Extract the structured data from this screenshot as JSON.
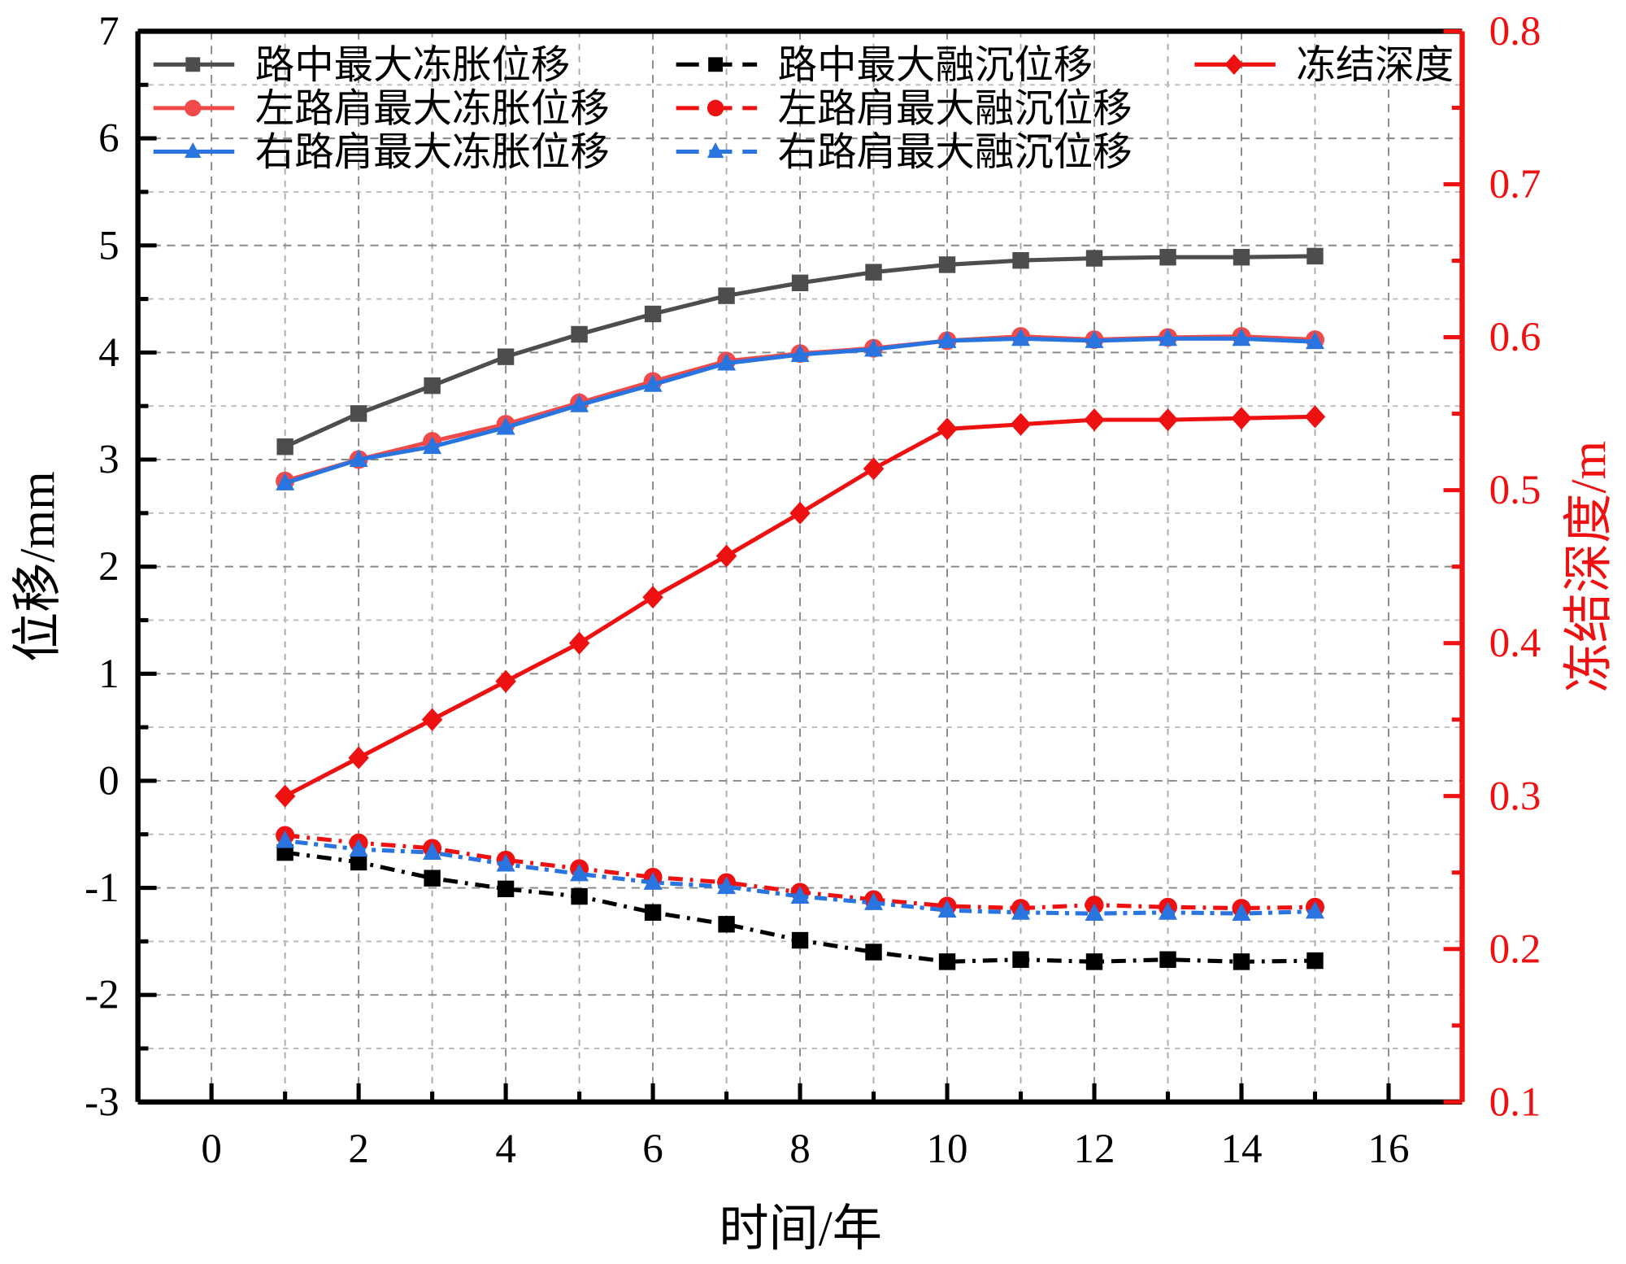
{
  "chart_data": {
    "type": "line",
    "xlabel": "时间/年",
    "ylabel": "位移/mm",
    "y2label": "冻结深度/m",
    "xlim": [
      -1,
      17
    ],
    "ylim": [
      -3,
      7
    ],
    "y2lim": [
      0.1,
      0.8
    ],
    "xticks": [
      0,
      2,
      4,
      6,
      8,
      10,
      12,
      14,
      16
    ],
    "yticks": [
      -3,
      -2,
      -1,
      0,
      1,
      2,
      3,
      4,
      5,
      6,
      7
    ],
    "y2ticks": [
      0.1,
      0.2,
      0.3,
      0.4,
      0.5,
      0.6,
      0.7,
      0.8
    ],
    "grid": true,
    "legend_placement": "top",
    "x": [
      1,
      2,
      3,
      4,
      5,
      6,
      7,
      8,
      9,
      10,
      11,
      12,
      13,
      14,
      15
    ],
    "series": [
      {
        "name": "路中最大冻胀位移",
        "axis": "left",
        "color": "#4d4d4d",
        "marker": "square",
        "style": "solid",
        "values": [
          3.12,
          3.43,
          3.69,
          3.96,
          4.17,
          4.36,
          4.53,
          4.65,
          4.75,
          4.82,
          4.86,
          4.88,
          4.89,
          4.89,
          4.9
        ]
      },
      {
        "name": "左路肩最大冻胀位移",
        "axis": "left",
        "color": "#f04a4a",
        "marker": "circle",
        "style": "solid",
        "values": [
          2.8,
          3.0,
          3.17,
          3.33,
          3.53,
          3.73,
          3.92,
          3.99,
          4.04,
          4.11,
          4.15,
          4.12,
          4.14,
          4.15,
          4.12
        ]
      },
      {
        "name": "右路肩最大冻胀位移",
        "axis": "left",
        "color": "#2a74e0",
        "marker": "triangle",
        "style": "solid",
        "values": [
          2.78,
          3.0,
          3.12,
          3.3,
          3.51,
          3.7,
          3.9,
          3.98,
          4.03,
          4.11,
          4.13,
          4.11,
          4.13,
          4.13,
          4.1
        ]
      },
      {
        "name": "路中最大融沉位移",
        "axis": "left",
        "color": "#000000",
        "marker": "square",
        "style": "dashdot",
        "values": [
          -0.67,
          -0.76,
          -0.91,
          -1.01,
          -1.08,
          -1.23,
          -1.34,
          -1.49,
          -1.6,
          -1.69,
          -1.67,
          -1.69,
          -1.67,
          -1.69,
          -1.68
        ]
      },
      {
        "name": "左路肩最大融沉位移",
        "axis": "left",
        "color": "#ee1111",
        "marker": "circle",
        "style": "dashdot",
        "values": [
          -0.51,
          -0.58,
          -0.63,
          -0.74,
          -0.82,
          -0.9,
          -0.95,
          -1.04,
          -1.11,
          -1.17,
          -1.19,
          -1.16,
          -1.18,
          -1.19,
          -1.18
        ]
      },
      {
        "name": "右路肩最大融沉位移",
        "axis": "left",
        "color": "#2a74e0",
        "marker": "triangle",
        "style": "dotdash",
        "values": [
          -0.56,
          -0.64,
          -0.67,
          -0.78,
          -0.87,
          -0.95,
          -0.99,
          -1.08,
          -1.14,
          -1.21,
          -1.23,
          -1.24,
          -1.23,
          -1.24,
          -1.22
        ]
      },
      {
        "name": "冻结深度",
        "axis": "right",
        "color": "#ee1111",
        "marker": "diamond",
        "style": "solid",
        "values": [
          0.3,
          0.325,
          0.35,
          0.375,
          0.4,
          0.43,
          0.457,
          0.485,
          0.514,
          0.54,
          0.543,
          0.546,
          0.546,
          0.547,
          0.548
        ]
      }
    ],
    "axis_colors": {
      "left": "#000000",
      "right": "#ee1111"
    }
  }
}
